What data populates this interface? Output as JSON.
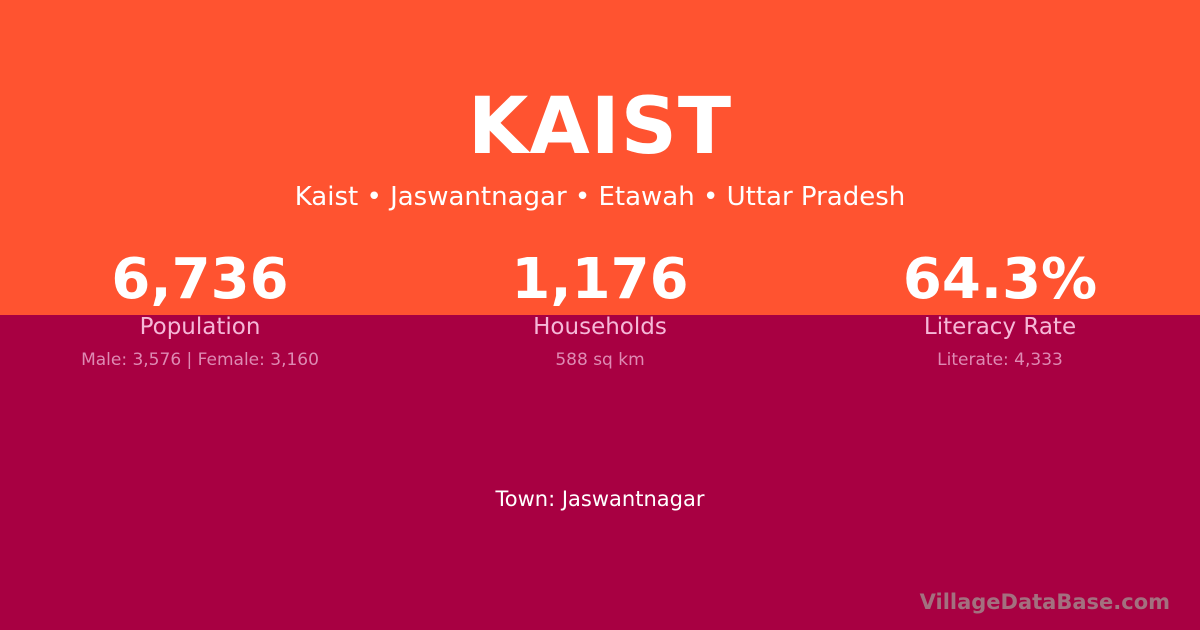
{
  "colors": {
    "top_background": "#FF5330",
    "bottom_background": "#A80042"
  },
  "title": "KAIST",
  "subtitle": "Kaist • Jaswantnagar • Etawah • Uttar Pradesh",
  "stats": [
    {
      "value": "6,736",
      "label": "Population",
      "detail": "Male: 3,576 | Female: 3,160"
    },
    {
      "value": "1,176",
      "label": "Households",
      "detail": "588 sq km"
    },
    {
      "value": "64.3%",
      "label": "Literacy Rate",
      "detail": "Literate: 4,333"
    }
  ],
  "town": "Town: Jaswantnagar",
  "brand": "VillageDataBase.com"
}
